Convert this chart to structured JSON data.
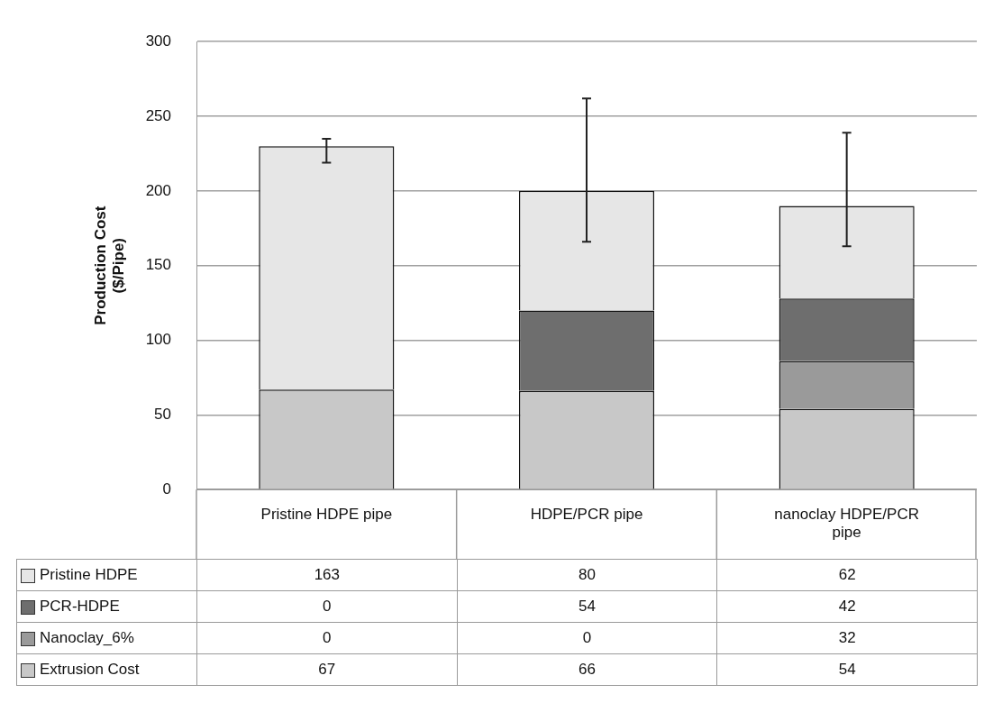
{
  "chart_data": {
    "type": "bar",
    "ylabel": "Production Cost\n($/Pipe)",
    "categories": [
      "Pristine HDPE pipe",
      "HDPE/PCR pipe",
      "nanoclay HDPE/PCR pipe"
    ],
    "stacked": true,
    "ylim": [
      0,
      300
    ],
    "yticks": [
      0,
      50,
      100,
      150,
      200,
      250,
      300
    ],
    "grid": "y",
    "legend": "bottom",
    "data_labels": true,
    "series": [
      {
        "name": "Extrusion Cost",
        "color": "#c8c8c8",
        "values": [
          67,
          66,
          54
        ]
      },
      {
        "name": "Nanoclay_6%",
        "color": "#9a9a9a",
        "values": [
          0,
          0,
          32
        ]
      },
      {
        "name": "PCR-HDPE",
        "color": "#6e6e6e",
        "values": [
          0,
          54,
          42
        ]
      },
      {
        "name": "Pristine HDPE",
        "color": "#e6e6e6",
        "values": [
          163,
          80,
          62
        ],
        "errors": [
          [
            219,
            235
          ],
          [
            166,
            262
          ],
          [
            163,
            239
          ]
        ]
      }
    ]
  }
}
